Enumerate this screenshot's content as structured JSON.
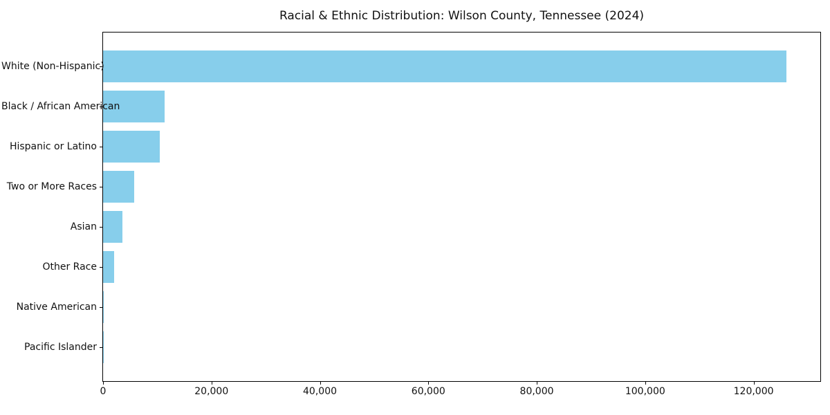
{
  "chart_data": {
    "type": "bar",
    "orientation": "horizontal",
    "title": "Racial & Ethnic Distribution: Wilson County, Tennessee (2024)",
    "xlabel": "",
    "ylabel": "",
    "categories": [
      "White (Non-Hispanic)",
      "Black / African American",
      "Hispanic or Latino",
      "Two or More Races",
      "Asian",
      "Other Race",
      "Native American",
      "Pacific Islander"
    ],
    "values": [
      126000,
      11300,
      10400,
      5700,
      3600,
      2000,
      100,
      50
    ],
    "xlim": [
      0,
      132300
    ],
    "xticks": [
      0,
      20000,
      40000,
      60000,
      80000,
      100000,
      120000
    ],
    "grid": false,
    "legend": null,
    "bar_color": "#87CEEB"
  },
  "colors": {
    "bar": "#87CEEB",
    "text": "#111111",
    "spine": "#000000",
    "background": "#ffffff"
  }
}
